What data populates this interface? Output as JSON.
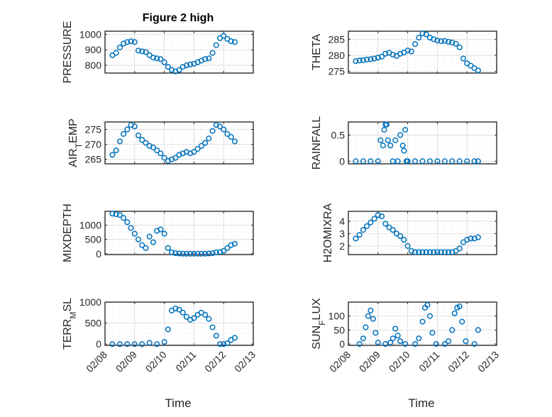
{
  "figure": {
    "title": "Figure 2 high",
    "x_axis_label": "Time",
    "x_tick_labels": [
      "02/08",
      "02/09",
      "02/10",
      "02/11",
      "02/12",
      "02/13"
    ],
    "x_range_days": [
      "02/08",
      "02/13"
    ]
  },
  "colors": {
    "marker": "#0072bd",
    "axes": "#262626",
    "grid": "#d9d9d9"
  },
  "chart_data": [
    {
      "type": "scatter",
      "marker": "open-circle",
      "grid": true,
      "ylabel": "PRESSURE",
      "ylim": [
        750,
        1020
      ],
      "yticks": [
        800,
        900,
        1000
      ],
      "x": [
        "02/08 06:00",
        "02/08 09:00",
        "02/08 12:00",
        "02/08 15:00",
        "02/08 18:00",
        "02/08 21:00",
        "02/09 00:00",
        "02/09 03:00",
        "02/09 06:00",
        "02/09 09:00",
        "02/09 12:00",
        "02/09 15:00",
        "02/09 18:00",
        "02/09 21:00",
        "02/10 00:00",
        "02/10 03:00",
        "02/10 06:00",
        "02/10 09:00",
        "02/10 12:00",
        "02/10 15:00",
        "02/10 18:00",
        "02/10 21:00",
        "02/11 00:00",
        "02/11 03:00",
        "02/11 06:00",
        "02/11 09:00",
        "02/11 12:00",
        "02/11 15:00",
        "02/11 18:00",
        "02/11 21:00",
        "02/12 00:00",
        "02/12 03:00",
        "02/12 06:00",
        "02/12 09:00"
      ],
      "y": [
        865,
        880,
        915,
        940,
        950,
        955,
        950,
        895,
        890,
        885,
        865,
        850,
        845,
        840,
        820,
        790,
        770,
        760,
        770,
        790,
        800,
        805,
        810,
        820,
        830,
        840,
        845,
        880,
        930,
        975,
        990,
        970,
        955,
        950
      ]
    },
    {
      "type": "scatter",
      "marker": "open-circle",
      "grid": true,
      "ylabel": "THETA",
      "ylim": [
        274.5,
        287.5
      ],
      "yticks": [
        275,
        280,
        285
      ],
      "x": [
        "02/08 06:00",
        "02/08 09:00",
        "02/08 12:00",
        "02/08 15:00",
        "02/08 18:00",
        "02/08 21:00",
        "02/09 00:00",
        "02/09 03:00",
        "02/09 06:00",
        "02/09 09:00",
        "02/09 12:00",
        "02/09 15:00",
        "02/09 18:00",
        "02/09 21:00",
        "02/10 00:00",
        "02/10 03:00",
        "02/10 06:00",
        "02/10 09:00",
        "02/10 12:00",
        "02/10 15:00",
        "02/10 18:00",
        "02/10 21:00",
        "02/11 00:00",
        "02/11 03:00",
        "02/11 06:00",
        "02/11 09:00",
        "02/11 12:00",
        "02/11 15:00",
        "02/11 18:00",
        "02/11 21:00",
        "02/12 00:00",
        "02/12 03:00",
        "02/12 06:00",
        "02/12 09:00"
      ],
      "y": [
        278.2,
        278.4,
        278.5,
        278.7,
        278.8,
        279.0,
        279.3,
        279.6,
        280.5,
        280.8,
        280.2,
        279.8,
        280.5,
        280.9,
        281.5,
        281.2,
        283.5,
        285.5,
        286.8,
        286.5,
        285.5,
        285.0,
        284.6,
        284.4,
        284.5,
        284.2,
        284.0,
        283.6,
        282.5,
        279.0,
        277.5,
        276.8,
        276.0,
        275.3
      ]
    },
    {
      "type": "scatter",
      "marker": "open-circle",
      "grid": true,
      "ylabel": "AIR_TEMP",
      "ylim": [
        263.5,
        277.5
      ],
      "yticks": [
        265,
        270,
        275
      ],
      "x": [
        "02/08 06:00",
        "02/08 09:00",
        "02/08 12:00",
        "02/08 15:00",
        "02/08 18:00",
        "02/08 21:00",
        "02/09 00:00",
        "02/09 03:00",
        "02/09 06:00",
        "02/09 09:00",
        "02/09 12:00",
        "02/09 15:00",
        "02/09 18:00",
        "02/09 21:00",
        "02/10 00:00",
        "02/10 03:00",
        "02/10 06:00",
        "02/10 09:00",
        "02/10 12:00",
        "02/10 15:00",
        "02/10 18:00",
        "02/10 21:00",
        "02/11 00:00",
        "02/11 03:00",
        "02/11 06:00",
        "02/11 09:00",
        "02/11 12:00",
        "02/11 15:00",
        "02/11 18:00",
        "02/11 21:00",
        "02/12 00:00",
        "02/12 03:00",
        "02/12 06:00",
        "02/12 09:00"
      ],
      "y": [
        266.5,
        268.0,
        271.0,
        273.5,
        275.0,
        276.5,
        276.0,
        273.0,
        271.5,
        270.5,
        269.5,
        269.0,
        268.0,
        267.0,
        265.5,
        264.5,
        265.0,
        265.5,
        266.5,
        267.0,
        267.5,
        267.0,
        267.5,
        268.5,
        269.5,
        270.5,
        272.0,
        274.5,
        276.5,
        276.0,
        275.0,
        273.5,
        272.5,
        271.0
      ]
    },
    {
      "type": "scatter",
      "marker": "open-circle",
      "grid": true,
      "ylabel": "RAINFALL",
      "ylim": [
        -0.05,
        0.75
      ],
      "yticks": [
        0,
        0.5
      ],
      "x": [
        "02/08 06:00",
        "02/08 12:00",
        "02/08 18:00",
        "02/09 00:00",
        "02/09 02:00",
        "02/09 04:00",
        "02/09 05:00",
        "02/09 06:00",
        "02/09 07:00",
        "02/09 08:00",
        "02/09 10:00",
        "02/09 12:00",
        "02/09 14:00",
        "02/09 16:00",
        "02/09 18:00",
        "02/09 20:00",
        "02/09 21:00",
        "02/09 22:00",
        "02/09 23:00",
        "02/10 00:00",
        "02/10 06:00",
        "02/10 12:00",
        "02/10 18:00",
        "02/11 00:00",
        "02/11 06:00",
        "02/11 12:00",
        "02/11 18:00",
        "02/12 00:00",
        "02/12 06:00",
        "02/12 09:00"
      ],
      "y": [
        0,
        0,
        0,
        0,
        0.4,
        0.3,
        0.6,
        0.7,
        0.7,
        0.4,
        0.3,
        0,
        0.4,
        0,
        0.5,
        0.3,
        0.2,
        0.6,
        0,
        0,
        0,
        0,
        0,
        0,
        0,
        0,
        0,
        0,
        0,
        0
      ]
    },
    {
      "type": "scatter",
      "marker": "open-circle",
      "grid": true,
      "ylabel": "MIXDEPTH",
      "ylim": [
        -30,
        1480
      ],
      "yticks": [
        0,
        500,
        1000
      ],
      "x": [
        "02/08 06:00",
        "02/08 09:00",
        "02/08 12:00",
        "02/08 15:00",
        "02/08 18:00",
        "02/08 21:00",
        "02/09 00:00",
        "02/09 03:00",
        "02/09 06:00",
        "02/09 09:00",
        "02/09 12:00",
        "02/09 15:00",
        "02/09 18:00",
        "02/09 21:00",
        "02/10 00:00",
        "02/10 03:00",
        "02/10 06:00",
        "02/10 09:00",
        "02/10 12:00",
        "02/10 15:00",
        "02/10 18:00",
        "02/10 21:00",
        "02/11 00:00",
        "02/11 03:00",
        "02/11 06:00",
        "02/11 09:00",
        "02/11 12:00",
        "02/11 15:00",
        "02/11 18:00",
        "02/11 21:00",
        "02/12 00:00",
        "02/12 03:00",
        "02/12 06:00",
        "02/12 09:00"
      ],
      "y": [
        1400,
        1380,
        1350,
        1250,
        1100,
        900,
        700,
        500,
        300,
        200,
        600,
        400,
        800,
        850,
        700,
        200,
        50,
        20,
        10,
        0,
        0,
        0,
        0,
        0,
        0,
        0,
        10,
        20,
        50,
        60,
        100,
        200,
        300,
        350
      ]
    },
    {
      "type": "scatter",
      "marker": "open-circle",
      "grid": true,
      "ylabel": "H2OMIXRA",
      "ylim": [
        1.3,
        4.8
      ],
      "yticks": [
        2,
        3,
        4
      ],
      "x": [
        "02/08 06:00",
        "02/08 09:00",
        "02/08 12:00",
        "02/08 15:00",
        "02/08 18:00",
        "02/08 21:00",
        "02/09 00:00",
        "02/09 03:00",
        "02/09 06:00",
        "02/09 09:00",
        "02/09 12:00",
        "02/09 15:00",
        "02/09 18:00",
        "02/09 21:00",
        "02/10 00:00",
        "02/10 03:00",
        "02/10 06:00",
        "02/10 09:00",
        "02/10 12:00",
        "02/10 15:00",
        "02/10 18:00",
        "02/10 21:00",
        "02/11 00:00",
        "02/11 03:00",
        "02/11 06:00",
        "02/11 09:00",
        "02/11 12:00",
        "02/11 15:00",
        "02/11 18:00",
        "02/11 21:00",
        "02/12 00:00",
        "02/12 03:00",
        "02/12 06:00",
        "02/12 09:00"
      ],
      "y": [
        2.6,
        2.9,
        3.3,
        3.6,
        3.9,
        4.2,
        4.5,
        4.4,
        3.8,
        3.5,
        3.3,
        3.0,
        2.8,
        2.5,
        2.0,
        1.6,
        1.5,
        1.5,
        1.5,
        1.5,
        1.5,
        1.5,
        1.5,
        1.5,
        1.5,
        1.5,
        1.5,
        1.6,
        1.8,
        2.3,
        2.5,
        2.6,
        2.6,
        2.7
      ]
    },
    {
      "type": "scatter",
      "marker": "open-circle",
      "grid": true,
      "ylabel": "TERR_MSL",
      "ylim": [
        -30,
        1000
      ],
      "yticks": [
        0,
        500,
        1000
      ],
      "x": [
        "02/08 06:00",
        "02/08 12:00",
        "02/08 18:00",
        "02/09 00:00",
        "02/09 06:00",
        "02/09 12:00",
        "02/09 18:00",
        "02/10 00:00",
        "02/10 03:00",
        "02/10 06:00",
        "02/10 09:00",
        "02/10 12:00",
        "02/10 15:00",
        "02/10 18:00",
        "02/10 21:00",
        "02/11 00:00",
        "02/11 03:00",
        "02/11 06:00",
        "02/11 09:00",
        "02/11 12:00",
        "02/11 15:00",
        "02/11 18:00",
        "02/11 21:00",
        "02/12 00:00",
        "02/12 03:00",
        "02/12 06:00",
        "02/12 09:00"
      ],
      "y": [
        0,
        0,
        0,
        0,
        0,
        30,
        0,
        50,
        350,
        800,
        850,
        820,
        750,
        650,
        580,
        620,
        700,
        750,
        700,
        600,
        400,
        200,
        0,
        0,
        20,
        100,
        150
      ]
    },
    {
      "type": "scatter",
      "marker": "open-circle",
      "grid": true,
      "ylabel": "SUN_FLUX",
      "ylim": [
        -5,
        150
      ],
      "yticks": [
        0,
        50,
        100
      ],
      "x": [
        "02/08 09:00",
        "02/08 12:00",
        "02/08 14:00",
        "02/08 16:00",
        "02/08 18:00",
        "02/08 20:00",
        "02/08 22:00",
        "02/09 00:00",
        "02/09 06:00",
        "02/09 10:00",
        "02/09 12:00",
        "02/09 14:00",
        "02/09 16:00",
        "02/09 18:00",
        "02/09 22:00",
        "02/10 06:00",
        "02/10 09:00",
        "02/10 12:00",
        "02/10 14:00",
        "02/10 16:00",
        "02/10 18:00",
        "02/10 20:00",
        "02/10 23:00",
        "02/11 06:00",
        "02/11 09:00",
        "02/11 12:00",
        "02/11 14:00",
        "02/11 16:00",
        "02/11 18:00",
        "02/11 20:00",
        "02/11 23:00",
        "02/12 06:00",
        "02/12 09:00"
      ],
      "y": [
        0,
        20,
        60,
        100,
        120,
        90,
        40,
        5,
        0,
        5,
        20,
        55,
        30,
        10,
        0,
        0,
        20,
        80,
        130,
        140,
        100,
        40,
        0,
        0,
        10,
        50,
        110,
        130,
        135,
        80,
        10,
        0,
        50
      ]
    }
  ]
}
